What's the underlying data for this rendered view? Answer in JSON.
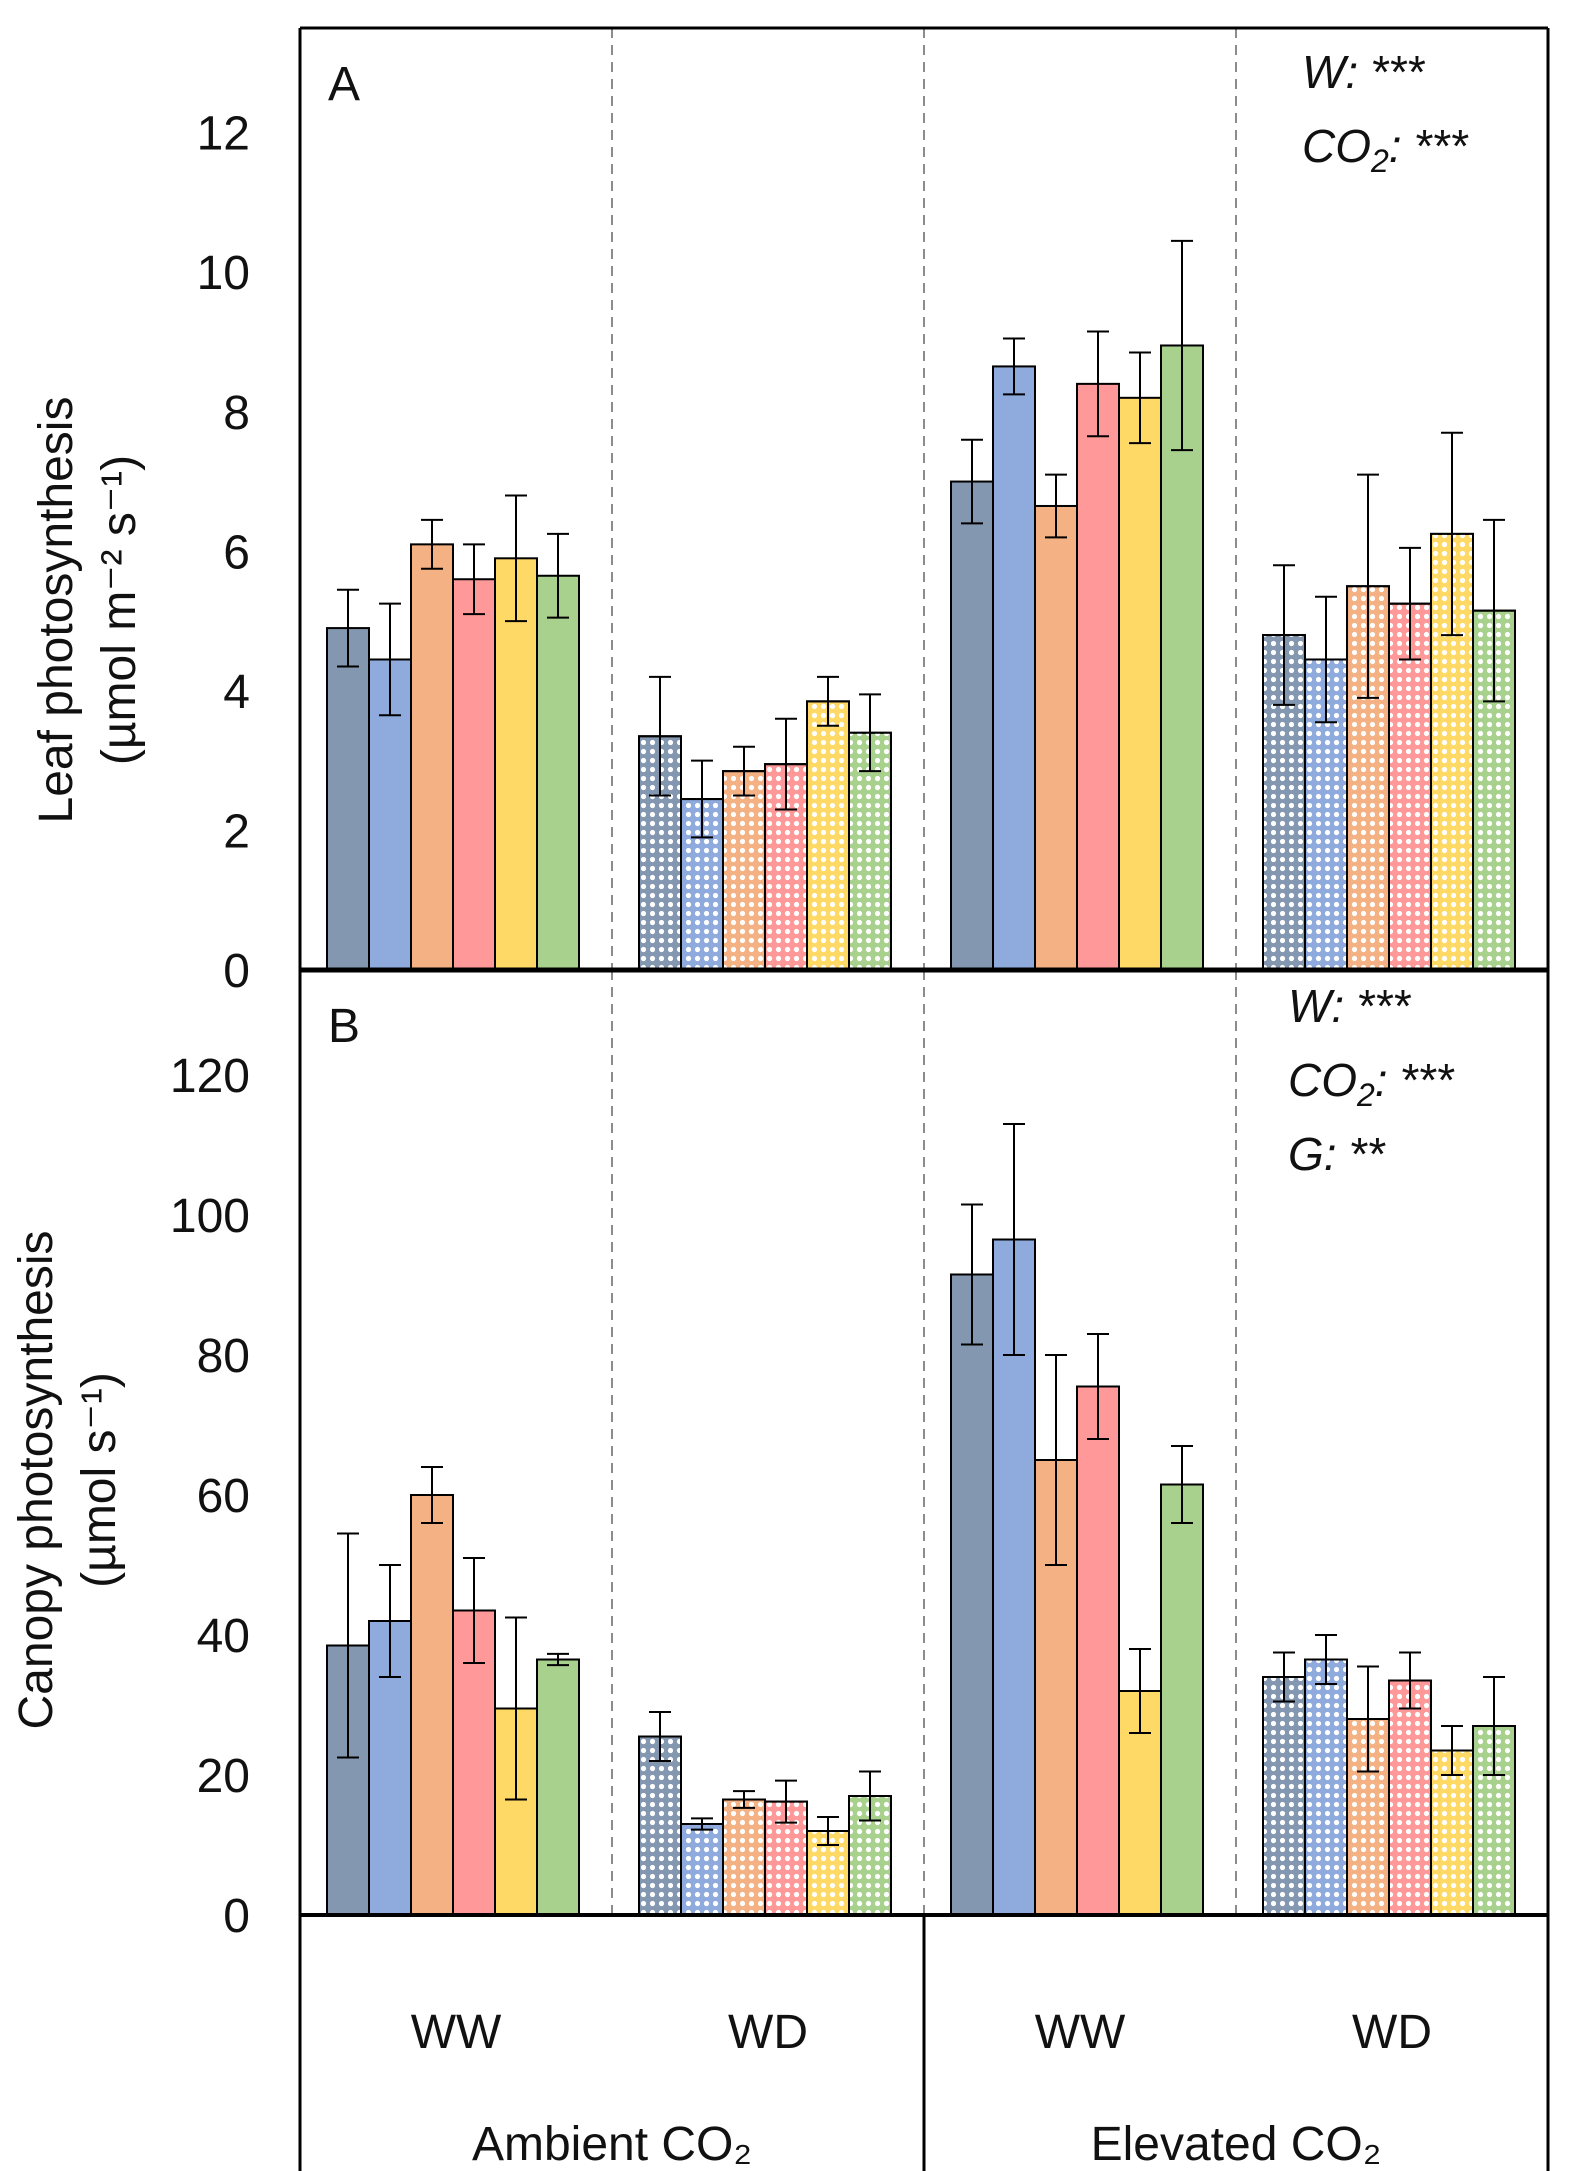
{
  "chart_data": [
    {
      "type": "bar",
      "panel_label": "A",
      "ylabel_line1": "Leaf photosynthesis",
      "ylabel_line2": "(µmol m⁻² s⁻¹)",
      "ylim": [
        0,
        13.5
      ],
      "yticks": [
        "0",
        "2",
        "4",
        "6",
        "8",
        "10",
        "12"
      ],
      "ytick_values": [
        0,
        2,
        4,
        6,
        8,
        10,
        12
      ],
      "groups": [
        "Ambient CO₂ WW",
        "Ambient CO₂ WD",
        "Elevated CO₂ WW",
        "Elevated CO₂ WD"
      ],
      "values": [
        [
          4.9,
          4.45,
          6.1,
          5.6,
          5.9,
          5.65
        ],
        [
          3.35,
          2.45,
          2.85,
          2.95,
          3.85,
          3.4
        ],
        [
          7.0,
          8.65,
          6.65,
          8.4,
          8.2,
          8.95
        ],
        [
          4.8,
          4.45,
          5.5,
          5.25,
          6.25,
          5.15
        ]
      ],
      "errors": [
        [
          0.55,
          0.8,
          0.35,
          0.5,
          0.9,
          0.6
        ],
        [
          0.85,
          0.55,
          0.35,
          0.65,
          0.35,
          0.55
        ],
        [
          0.6,
          0.4,
          0.45,
          0.75,
          0.65,
          1.5
        ],
        [
          1.0,
          0.9,
          1.6,
          0.8,
          1.45,
          1.3
        ]
      ],
      "stats": [
        {
          "label": "W:",
          "sub": "",
          "stars": "***"
        },
        {
          "label": "CO",
          "sub": "2",
          "stars": "***"
        }
      ]
    },
    {
      "type": "bar",
      "panel_label": "B",
      "ylabel_line1": "Canopy photosynthesis",
      "ylabel_line2": "(µmol s⁻¹)",
      "ylim": [
        0,
        135
      ],
      "yticks": [
        "0",
        "20",
        "40",
        "60",
        "80",
        "100",
        "120"
      ],
      "ytick_values": [
        0,
        20,
        40,
        60,
        80,
        100,
        120
      ],
      "groups": [
        "Ambient CO₂ WW",
        "Ambient CO₂ WD",
        "Elevated CO₂ WW",
        "Elevated CO₂ WD"
      ],
      "values": [
        [
          38.5,
          42,
          60,
          43.5,
          29.5,
          36.5
        ],
        [
          25.5,
          13,
          16.5,
          16.2,
          12,
          17
        ],
        [
          91.5,
          96.5,
          65,
          75.5,
          32,
          61.5
        ],
        [
          34,
          36.5,
          28,
          33.5,
          23.5,
          27
        ]
      ],
      "errors": [
        [
          16,
          8,
          4,
          7.5,
          13,
          0.8
        ],
        [
          3.5,
          0.8,
          1.2,
          3,
          2,
          3.5
        ],
        [
          10,
          16.5,
          15,
          7.5,
          6,
          5.5
        ],
        [
          3.5,
          3.5,
          7.5,
          4,
          3.5,
          7
        ]
      ],
      "stats": [
        {
          "label": "W:",
          "sub": "",
          "stars": "***"
        },
        {
          "label": "CO",
          "sub": "2",
          "stars": "***"
        },
        {
          "label": "G:",
          "sub": "",
          "stars": "**"
        }
      ]
    }
  ],
  "series_colors": [
    "#8497b0",
    "#8faadc",
    "#f4b183",
    "#ff9999",
    "#ffd966",
    "#a9d18e"
  ],
  "x_axis": {
    "water_labels": [
      "WW",
      "WD",
      "WW",
      "WD"
    ],
    "co2_labels": [
      "Ambient CO₂",
      "Elevated CO₂"
    ]
  }
}
